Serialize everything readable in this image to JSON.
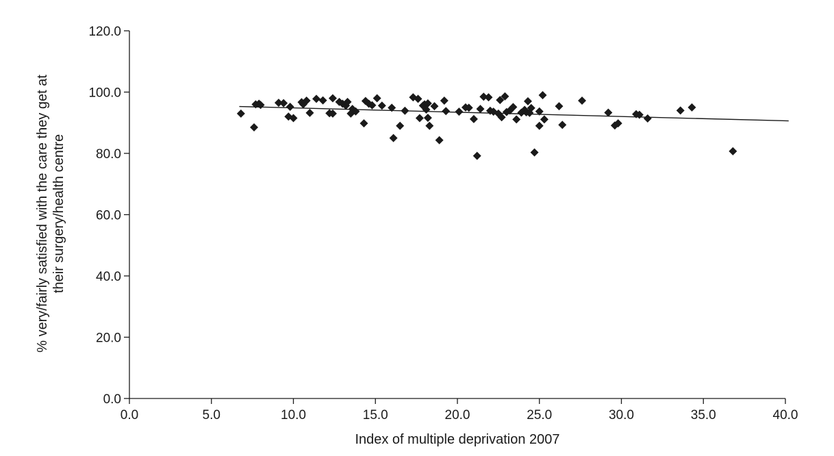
{
  "chart_data": {
    "type": "scatter",
    "xlabel": "Index of multiple deprivation 2007",
    "ylabel_lines": [
      "% very/fairly satisfied with the care they get at",
      "their surgery/health centre"
    ],
    "xlim": [
      0,
      40
    ],
    "ylim": [
      0,
      120
    ],
    "x_ticks": [
      "0.0",
      "5.0",
      "10.0",
      "15.0",
      "20.0",
      "25.0",
      "30.0",
      "35.0",
      "40.0"
    ],
    "y_ticks": [
      "0.0",
      "20.0",
      "40.0",
      "60.0",
      "80.0",
      "100.0",
      "120.0"
    ],
    "grid": false,
    "legend": "none",
    "marker": "diamond",
    "marker_color": "#1a1a1a",
    "trendline": {
      "x": [
        6.7,
        40.2
      ],
      "y": [
        95.3,
        90.6
      ]
    },
    "points": [
      [
        6.8,
        93.0
      ],
      [
        7.6,
        88.5
      ],
      [
        7.7,
        96.0
      ],
      [
        7.9,
        96.2
      ],
      [
        8.0,
        95.8
      ],
      [
        9.1,
        96.5
      ],
      [
        9.4,
        96.4
      ],
      [
        9.7,
        92.0
      ],
      [
        9.8,
        95.2
      ],
      [
        10.0,
        91.5
      ],
      [
        10.5,
        96.7
      ],
      [
        10.6,
        96.0
      ],
      [
        10.8,
        97.2
      ],
      [
        11.0,
        93.2
      ],
      [
        11.4,
        97.8
      ],
      [
        11.8,
        97.3
      ],
      [
        12.2,
        93.1
      ],
      [
        12.4,
        93.0
      ],
      [
        12.4,
        98.0
      ],
      [
        12.8,
        96.8
      ],
      [
        13.0,
        96.2
      ],
      [
        13.2,
        95.6
      ],
      [
        13.3,
        96.8
      ],
      [
        13.5,
        93.0
      ],
      [
        13.6,
        94.5
      ],
      [
        13.8,
        93.7
      ],
      [
        14.3,
        89.8
      ],
      [
        14.4,
        97.1
      ],
      [
        14.6,
        96.2
      ],
      [
        14.8,
        95.7
      ],
      [
        15.1,
        98.0
      ],
      [
        15.4,
        95.6
      ],
      [
        16.0,
        94.9
      ],
      [
        16.1,
        85.0
      ],
      [
        16.5,
        89.0
      ],
      [
        16.8,
        93.9
      ],
      [
        17.3,
        98.3
      ],
      [
        17.6,
        97.8
      ],
      [
        17.7,
        91.5
      ],
      [
        17.9,
        95.6
      ],
      [
        18.0,
        96.0
      ],
      [
        18.1,
        94.3
      ],
      [
        18.2,
        96.3
      ],
      [
        18.2,
        91.6
      ],
      [
        18.3,
        89.0
      ],
      [
        18.6,
        95.4
      ],
      [
        18.9,
        84.3
      ],
      [
        19.2,
        97.2
      ],
      [
        19.3,
        93.8
      ],
      [
        20.1,
        93.6
      ],
      [
        20.5,
        95.0
      ],
      [
        20.7,
        94.9
      ],
      [
        21.0,
        91.2
      ],
      [
        21.2,
        79.2
      ],
      [
        21.4,
        94.5
      ],
      [
        21.6,
        98.5
      ],
      [
        21.9,
        98.3
      ],
      [
        22.0,
        93.9
      ],
      [
        22.2,
        93.6
      ],
      [
        22.5,
        93.0
      ],
      [
        22.6,
        97.4
      ],
      [
        22.7,
        91.8
      ],
      [
        22.9,
        98.6
      ],
      [
        23.0,
        93.5
      ],
      [
        23.2,
        94.0
      ],
      [
        23.4,
        95.1
      ],
      [
        23.6,
        91.1
      ],
      [
        23.9,
        93.3
      ],
      [
        24.1,
        94.2
      ],
      [
        24.2,
        93.4
      ],
      [
        24.3,
        97.0
      ],
      [
        24.5,
        94.8
      ],
      [
        24.4,
        93.2
      ],
      [
        24.7,
        80.3
      ],
      [
        25.0,
        89.0
      ],
      [
        25.0,
        93.7
      ],
      [
        25.2,
        99.0
      ],
      [
        25.3,
        91.1
      ],
      [
        26.2,
        95.4
      ],
      [
        26.4,
        89.3
      ],
      [
        27.6,
        97.2
      ],
      [
        29.2,
        93.3
      ],
      [
        29.6,
        89.1
      ],
      [
        29.8,
        89.8
      ],
      [
        30.9,
        92.8
      ],
      [
        31.1,
        92.6
      ],
      [
        31.6,
        91.4
      ],
      [
        33.6,
        94.0
      ],
      [
        34.3,
        95.0
      ],
      [
        36.8,
        80.7
      ]
    ]
  }
}
